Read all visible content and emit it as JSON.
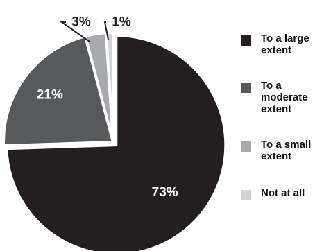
{
  "chart_data": {
    "type": "pie",
    "categories": [
      "To a large extent",
      "To a moderate extent",
      "To a small extent",
      "Not at all"
    ],
    "values": [
      73,
      21,
      3,
      1
    ],
    "value_labels": [
      "73%",
      "21%",
      "3%",
      "1%"
    ],
    "colors": [
      "#231f20",
      "#58595b",
      "#a7a9ac",
      "#d1d3d4"
    ],
    "value_label_colors": [
      "#ffffff",
      "#ffffff",
      "#231f20",
      "#231f20"
    ],
    "legend_position": "right",
    "exploded_slice": "To a large extent",
    "title": "",
    "xlabel": "",
    "ylabel": ""
  }
}
